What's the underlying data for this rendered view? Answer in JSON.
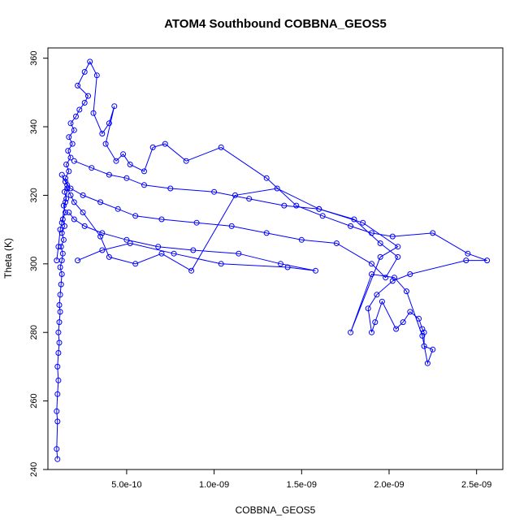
{
  "chart_data": {
    "type": "scatter",
    "title": "ATOM4 Southbound COBBNA_GEOS5",
    "xlabel": "COBBNA_GEOS5",
    "ylabel": "Theta (K)",
    "xlim": [
      5e-11,
      2.65e-09
    ],
    "ylim": [
      240,
      363
    ],
    "xticks": [
      5e-10,
      1e-09,
      1.5e-09,
      2e-09,
      2.5e-09
    ],
    "xtick_labels": [
      "5.0e-10",
      "1.0e-09",
      "1.5e-09",
      "2.0e-09",
      "2.5e-09"
    ],
    "yticks": [
      240,
      260,
      280,
      300,
      320,
      340,
      360
    ],
    "ytick_labels": [
      "240",
      "260",
      "280",
      "300",
      "320",
      "340",
      "360"
    ],
    "grid": false,
    "legend": "none",
    "color": "#0000ff",
    "marker": "open-circle",
    "connected": true,
    "series": [
      {
        "x": [
          1.05e-10,
          1e-10,
          1.05e-10,
          1e-10,
          1.05e-10,
          1.1e-10,
          1.05e-10,
          1.1e-10,
          1.15e-10,
          1.1e-10,
          1.15e-10,
          1.2e-10,
          1.15e-10,
          1.2e-10,
          1.25e-10,
          1.3e-10,
          1.2e-10,
          1.3e-10,
          1.35e-10,
          1.25e-10,
          1.4e-10,
          1.3e-10,
          1.45e-10,
          1.35e-10,
          1.5e-10,
          1.4e-10,
          1.55e-10,
          1.45e-10,
          1.6e-10,
          1.5e-10,
          1.7e-10,
          1.55e-10,
          1.8e-10,
          1.65e-10,
          1.9e-10,
          1.7e-10,
          2e-10,
          1.8e-10,
          2.1e-10,
          2.3e-10,
          2.6e-10,
          2.8e-10,
          2.2e-10,
          2.6e-10,
          2.9e-10,
          3.3e-10,
          3.1e-10,
          3.6e-10,
          4e-10,
          4.3e-10,
          3.8e-10,
          4.4e-10,
          4.8e-10,
          5.2e-10,
          6e-10,
          6.5e-10,
          7.2e-10,
          8.4e-10,
          1.04e-09,
          1.3e-09,
          1.47e-09,
          1.62e-09,
          1.78e-09,
          1.9e-09,
          2.02e-09,
          2.25e-09,
          2.45e-09,
          2.56e-09,
          2.44e-09,
          2.12e-09,
          2.02e-09,
          1.93e-09,
          1.88e-09,
          1.9e-09,
          1.92e-09,
          1.96e-09,
          2.04e-09,
          2.08e-09,
          2.12e-09,
          2.17e-09,
          2.19e-09,
          2.2e-09,
          2.2e-09,
          2.25e-09,
          2.22e-09,
          2.19e-09,
          2.1e-09,
          2.03e-09,
          1.9e-09,
          1.78e-09,
          1.95e-09,
          2.05e-09,
          1.85e-09,
          1.6e-09,
          1.36e-09,
          1.12e-09,
          8.7e-10,
          7e-10,
          5.5e-10,
          4e-10,
          3.5e-10,
          2.5e-10,
          2e-10,
          1.8e-10,
          1.6e-10,
          1.5e-10,
          1.3e-10,
          1.2e-10,
          1.1e-10,
          1e-10
        ],
        "y": [
          243,
          246,
          254,
          257,
          262,
          266,
          270,
          274,
          277,
          280,
          283,
          286,
          288,
          291,
          294,
          297,
          299,
          301,
          303,
          305,
          307,
          309,
          311,
          313,
          315,
          317,
          319,
          321,
          323,
          325,
          327,
          329,
          331,
          333,
          335,
          337,
          339,
          341,
          343,
          345,
          347,
          349,
          352,
          356,
          359,
          355,
          344,
          338,
          341,
          346,
          335,
          330,
          332,
          329,
          327,
          334,
          335,
          330,
          334,
          325,
          317,
          314,
          311,
          309,
          308,
          309,
          303,
          301,
          301,
          297,
          295,
          291,
          287,
          280,
          283,
          289,
          281,
          283,
          286,
          284,
          281,
          280,
          276,
          275,
          271,
          279,
          292,
          296,
          297,
          280,
          302,
          305,
          312,
          316,
          322,
          320,
          298,
          303,
          300,
          302,
          308,
          315,
          318,
          320,
          322,
          318,
          312,
          310,
          305,
          301
        ]
      },
      {
        "x": [
          2e-10,
          3e-10,
          4e-10,
          5e-10,
          6e-10,
          7.5e-10,
          1e-09,
          1.2e-09,
          1.4e-09,
          1.6e-09,
          1.8e-09,
          1.95e-09,
          2.05e-09,
          1.98e-09,
          1.9e-09,
          1.7e-09,
          1.5e-09,
          1.3e-09,
          1.1e-09,
          9e-10,
          7e-10,
          5.5e-10,
          4.5e-10,
          3.5e-10,
          2.5e-10,
          1.8e-10,
          1.5e-10,
          1.3e-10
        ],
        "y": [
          330,
          328,
          326,
          325,
          323,
          322,
          321,
          319,
          317,
          316,
          313,
          306,
          302,
          296,
          300,
          306,
          307,
          309,
          311,
          312,
          313,
          314,
          316,
          318,
          320,
          322,
          324,
          326
        ]
      },
      {
        "x": [
          2.2e-10,
          3.6e-10,
          5.2e-10,
          7.7e-10,
          1.04e-09,
          1.42e-09,
          1.58e-09,
          1.38e-09,
          1.14e-09,
          8.8e-10,
          6.8e-10,
          5e-10,
          3.6e-10,
          2.6e-10,
          2e-10,
          1.7e-10
        ],
        "y": [
          301,
          304,
          306,
          303,
          300,
          299,
          298,
          300,
          303,
          304,
          305,
          307,
          309,
          311,
          313,
          315
        ]
      }
    ]
  }
}
